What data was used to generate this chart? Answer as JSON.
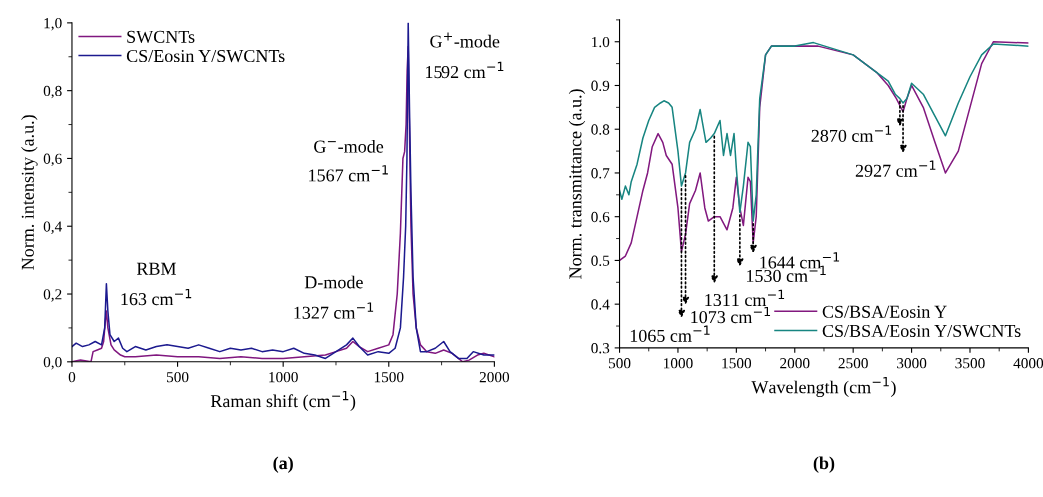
{
  "chart_data": [
    {
      "type": "line",
      "xlabel": "Raman shift (cm$^{−1}$)",
      "ylabel": "Norm. intensity (a.u.)",
      "xlim": [
        0,
        2000
      ],
      "xticks": [
        0,
        500,
        1000,
        1500,
        2000
      ],
      "ylim": [
        0,
        1.0
      ],
      "yticks": [
        {
          "value": 0,
          "label": "0,0"
        },
        {
          "value": 0.2,
          "label": "0,2"
        },
        {
          "value": 0.4,
          "label": "0,4"
        },
        {
          "value": 0.6,
          "label": "0,6"
        },
        {
          "value": 0.8,
          "label": "0,8"
        },
        {
          "value": 1.0,
          "label": "1,0"
        }
      ],
      "legend": "top left",
      "grid": false,
      "series": [
        {
          "name": "SWCNTs",
          "color": "#80177f",
          "x": [
            0,
            40,
            90,
            100,
            120,
            140,
            150,
            158,
            163,
            170,
            185,
            200,
            230,
            250,
            300,
            400,
            500,
            600,
            700,
            800,
            900,
            1000,
            1100,
            1200,
            1250,
            1300,
            1330,
            1360,
            1400,
            1450,
            1500,
            1520,
            1540,
            1555,
            1567,
            1575,
            1582,
            1587,
            1592,
            1597,
            1605,
            1615,
            1630,
            1650,
            1680,
            1720,
            1760,
            1800,
            1850,
            1880,
            1920,
            1950,
            2000
          ],
          "values": [
            0.0,
            0.005,
            0.0,
            0.03,
            0.035,
            0.04,
            0.06,
            0.12,
            0.15,
            0.1,
            0.05,
            0.035,
            0.02,
            0.015,
            0.015,
            0.02,
            0.015,
            0.015,
            0.01,
            0.015,
            0.01,
            0.01,
            0.015,
            0.02,
            0.03,
            0.04,
            0.06,
            0.045,
            0.03,
            0.04,
            0.05,
            0.08,
            0.2,
            0.38,
            0.6,
            0.62,
            0.7,
            0.86,
            0.93,
            0.72,
            0.4,
            0.2,
            0.1,
            0.05,
            0.03,
            0.025,
            0.035,
            0.025,
            0.0,
            0.005,
            0.02,
            0.025,
            0.015
          ]
        },
        {
          "name": "CS/Eosin Y/SWCNTs",
          "color": "#1c1a8f",
          "x": [
            0,
            20,
            50,
            80,
            110,
            140,
            155,
            163,
            170,
            180,
            200,
            220,
            240,
            260,
            300,
            350,
            400,
            450,
            500,
            550,
            600,
            650,
            700,
            750,
            800,
            850,
            900,
            950,
            1000,
            1050,
            1100,
            1150,
            1200,
            1250,
            1300,
            1330,
            1360,
            1400,
            1450,
            1500,
            1530,
            1555,
            1570,
            1580,
            1586,
            1592,
            1598,
            1605,
            1615,
            1630,
            1650,
            1680,
            1720,
            1760,
            1790,
            1830,
            1870,
            1900,
            1950,
            2000
          ],
          "values": [
            0.045,
            0.055,
            0.045,
            0.05,
            0.06,
            0.05,
            0.1,
            0.23,
            0.15,
            0.08,
            0.06,
            0.07,
            0.04,
            0.03,
            0.045,
            0.035,
            0.045,
            0.05,
            0.045,
            0.04,
            0.05,
            0.04,
            0.03,
            0.04,
            0.035,
            0.04,
            0.03,
            0.035,
            0.03,
            0.04,
            0.025,
            0.02,
            0.01,
            0.03,
            0.05,
            0.07,
            0.045,
            0.02,
            0.03,
            0.025,
            0.04,
            0.1,
            0.25,
            0.4,
            0.6,
            1.0,
            0.75,
            0.5,
            0.25,
            0.1,
            0.03,
            0.03,
            0.04,
            0.06,
            0.03,
            0.01,
            0.01,
            0.03,
            0.02,
            0.02
          ]
        }
      ],
      "annotations": [
        "RBM",
        "163 cm$^{−1}$",
        "D-mode",
        "1327 cm$^{−1}$",
        "G$^{−}$-mode",
        "1567 cm$^{−1}$",
        "G$^{+}$-mode",
        "1592 cm$^{−1}$",
        "(a)"
      ]
    },
    {
      "type": "line",
      "xlabel": "Wavelength (cm$^{−1}$)",
      "ylabel": "Norm. transmittance (a.u.)",
      "xlim": [
        500,
        4000
      ],
      "xticks": [
        500,
        1000,
        1500,
        2000,
        2500,
        3000,
        3500,
        4000
      ],
      "ylim": [
        0.3,
        1.05
      ],
      "yticks": [
        0.3,
        0.4,
        0.5,
        0.6,
        0.7,
        0.8,
        0.9,
        {
          "value": 1.0,
          "label": "1.0"
        }
      ],
      "legend": "bottom right",
      "grid": false,
      "series": [
        {
          "name": "CS/BSA/Eosin Y",
          "color": "#82197f",
          "x": [
            500,
            550,
            600,
            650,
            700,
            740,
            780,
            830,
            870,
            900,
            950,
            1000,
            1030,
            1065,
            1100,
            1150,
            1190,
            1230,
            1260,
            1311,
            1360,
            1420,
            1470,
            1500,
            1530,
            1560,
            1600,
            1620,
            1644,
            1670,
            1700,
            1750,
            1800,
            2000,
            2200,
            2500,
            2700,
            2800,
            2870,
            2927,
            2960,
            3000,
            3100,
            3200,
            3290,
            3400,
            3500,
            3600,
            3700,
            4000
          ],
          "values": [
            0.5,
            0.51,
            0.54,
            0.6,
            0.66,
            0.7,
            0.76,
            0.79,
            0.77,
            0.74,
            0.72,
            0.62,
            0.52,
            0.56,
            0.63,
            0.66,
            0.7,
            0.62,
            0.59,
            0.6,
            0.6,
            0.57,
            0.62,
            0.69,
            0.62,
            0.58,
            0.69,
            0.68,
            0.54,
            0.6,
            0.85,
            0.97,
            0.99,
            0.99,
            0.99,
            0.97,
            0.93,
            0.9,
            0.87,
            0.84,
            0.87,
            0.9,
            0.85,
            0.77,
            0.7,
            0.75,
            0.85,
            0.95,
            1.0,
            0.997
          ]
        },
        {
          "name": "CS/BSA/Eosin Y/SWCNTs",
          "color": "#178581",
          "x": [
            500,
            520,
            550,
            580,
            600,
            650,
            700,
            750,
            800,
            850,
            880,
            920,
            950,
            1000,
            1030,
            1065,
            1100,
            1150,
            1190,
            1240,
            1280,
            1311,
            1360,
            1390,
            1420,
            1450,
            1480,
            1500,
            1530,
            1560,
            1600,
            1620,
            1644,
            1670,
            1700,
            1750,
            1800,
            2000,
            2160,
            2500,
            2700,
            2800,
            2860,
            2900,
            2927,
            2960,
            3000,
            3100,
            3200,
            3290,
            3400,
            3500,
            3600,
            3700,
            4000
          ],
          "values": [
            0.66,
            0.64,
            0.67,
            0.65,
            0.68,
            0.72,
            0.78,
            0.82,
            0.85,
            0.86,
            0.865,
            0.86,
            0.85,
            0.75,
            0.67,
            0.7,
            0.77,
            0.8,
            0.845,
            0.77,
            0.78,
            0.79,
            0.82,
            0.74,
            0.79,
            0.74,
            0.79,
            0.71,
            0.61,
            0.67,
            0.77,
            0.76,
            0.59,
            0.65,
            0.87,
            0.97,
            0.99,
            0.99,
            0.998,
            0.97,
            0.93,
            0.91,
            0.88,
            0.87,
            0.86,
            0.87,
            0.905,
            0.88,
            0.83,
            0.785,
            0.86,
            0.92,
            0.97,
            0.995,
            0.99
          ]
        }
      ],
      "annotations": [
        {
          "text": "1065 cm$^{−1}$",
          "x": 1030,
          "y": 0.67
        },
        {
          "text": "1073 cm$^{−1}$",
          "x": 1065,
          "y": 0.7
        },
        {
          "text": "1311 cm$^{−1}$",
          "x": 1311,
          "y": 0.79
        },
        {
          "text": "1530 cm$^{−1}$",
          "x": 1530,
          "y": 0.61
        },
        {
          "text": "1644 cm$^{−1}$",
          "x": 1644,
          "y": 0.59
        },
        {
          "text": "2870 cm$^{−1}$",
          "x": 2900,
          "y": 0.87
        },
        {
          "text": "2927 cm$^{−1}$",
          "x": 2927,
          "y": 0.86
        },
        "(b)"
      ]
    }
  ]
}
